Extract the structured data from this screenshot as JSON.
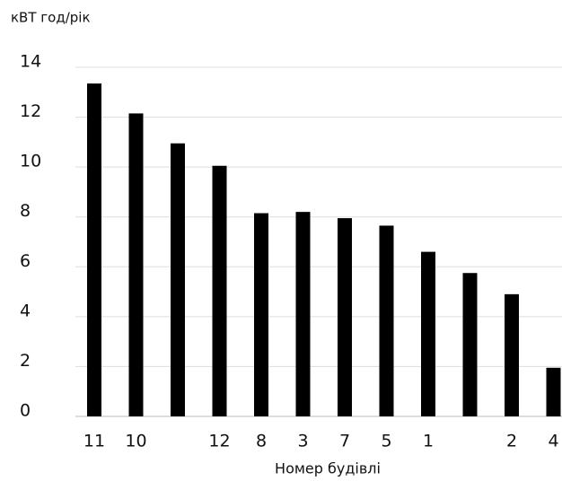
{
  "chart_data": {
    "type": "bar",
    "title": "кВТ год/рік",
    "x_label": "Номер будівлі",
    "categories": [
      "11",
      "10",
      null,
      "12",
      "8",
      "3",
      "7",
      "5",
      "1",
      null,
      "2",
      "4"
    ],
    "values": [
      13.35,
      12.15,
      10.95,
      10.05,
      8.15,
      8.2,
      7.95,
      7.65,
      6.6,
      5.75,
      4.9,
      1.95
    ],
    "color": "#000000",
    "ylim": [
      0,
      14
    ],
    "yticks": [
      0,
      2,
      4,
      6,
      8,
      10,
      12,
      14
    ],
    "grid": true
  }
}
